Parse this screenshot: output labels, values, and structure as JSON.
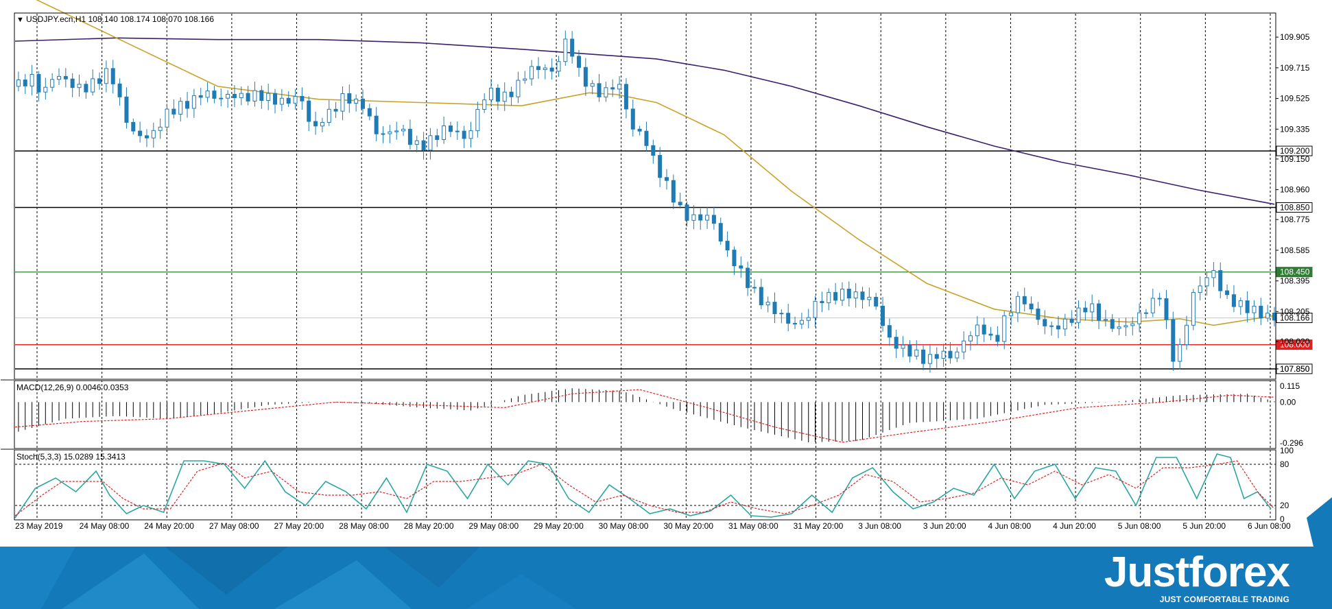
{
  "colors": {
    "bull_candle": "#ffffff",
    "bear_candle": "#1f7bb4",
    "candle_border": "#1f7bb4",
    "ma_fast": "#c9a227",
    "ma_slow": "#3a1f6b",
    "level_black": "#000000",
    "level_green": "#2e7d32",
    "level_red": "#e02020",
    "brand_blue": "#1479b8"
  },
  "chart_data": [
    {
      "type": "candlestick",
      "title": "USDJPY.ecn,H1  108.140 108.174 108.070 108.166",
      "symbol": "USDJPY.ecn,H1",
      "ohlc_header": [
        "108.140",
        "108.174",
        "108.070",
        "108.166"
      ],
      "ylim": [
        107.79,
        110.05
      ],
      "y_ticks": [
        "109.905",
        "109.715",
        "109.525",
        "109.335",
        "109.150",
        "108.960",
        "108.775",
        "108.585",
        "108.395",
        "108.205",
        "108.020",
        "107.850"
      ],
      "x_ticks": [
        "23 May 2019",
        "24 May 08:00",
        "24 May 20:00",
        "27 May 08:00",
        "27 May 20:00",
        "28 May 08:00",
        "28 May 20:00",
        "29 May 08:00",
        "29 May 20:00",
        "30 May 08:00",
        "30 May 20:00",
        "31 May 08:00",
        "31 May 20:00",
        "3 Jun 08:00",
        "3 Jun 20:00",
        "4 Jun 08:00",
        "4 Jun 20:00",
        "5 Jun 08:00",
        "5 Jun 20:00",
        "6 Jun 08:00"
      ],
      "levels": [
        {
          "label": "109.200",
          "value": 109.2,
          "style": "black"
        },
        {
          "label": "108.850",
          "value": 108.85,
          "style": "black"
        },
        {
          "label": "108.450",
          "value": 108.45,
          "style": "green"
        },
        {
          "label": "108.166",
          "value": 108.166,
          "style": "current"
        },
        {
          "label": "108.000",
          "value": 108.0,
          "style": "red"
        },
        {
          "label": "107.850",
          "value": 107.85,
          "style": "black"
        }
      ],
      "close_path": [
        [
          0,
          109.6
        ],
        [
          5,
          109.65
        ],
        [
          8,
          109.55
        ],
        [
          12,
          109.68
        ],
        [
          16,
          109.62
        ],
        [
          20,
          109.58
        ],
        [
          24,
          109.63
        ],
        [
          28,
          109.7
        ],
        [
          30,
          109.58
        ],
        [
          32,
          109.45
        ],
        [
          34,
          109.33
        ],
        [
          38,
          109.28
        ],
        [
          42,
          109.32
        ],
        [
          44,
          109.42
        ],
        [
          48,
          109.47
        ],
        [
          52,
          109.5
        ],
        [
          56,
          109.57
        ],
        [
          60,
          109.52
        ],
        [
          64,
          109.55
        ],
        [
          68,
          109.53
        ],
        [
          72,
          109.55
        ],
        [
          76,
          109.52
        ],
        [
          80,
          109.5
        ],
        [
          84,
          109.54
        ],
        [
          86,
          109.48
        ],
        [
          88,
          109.3
        ],
        [
          90,
          109.38
        ],
        [
          94,
          109.45
        ],
        [
          98,
          109.55
        ],
        [
          100,
          109.5
        ],
        [
          104,
          109.48
        ],
        [
          106,
          109.32
        ],
        [
          110,
          109.3
        ],
        [
          114,
          109.35
        ],
        [
          116,
          109.28
        ],
        [
          120,
          109.22
        ],
        [
          124,
          109.28
        ],
        [
          128,
          109.35
        ],
        [
          132,
          109.3
        ],
        [
          134,
          109.26
        ],
        [
          136,
          109.4
        ],
        [
          140,
          109.58
        ],
        [
          144,
          109.52
        ],
        [
          148,
          109.58
        ],
        [
          152,
          109.7
        ],
        [
          156,
          109.72
        ],
        [
          160,
          109.68
        ],
        [
          162,
          109.85
        ],
        [
          164,
          109.9
        ],
        [
          166,
          109.72
        ],
        [
          170,
          109.6
        ],
        [
          174,
          109.55
        ],
        [
          178,
          109.62
        ],
        [
          180,
          109.58
        ],
        [
          182,
          109.35
        ],
        [
          186,
          109.3
        ],
        [
          190,
          109.1
        ],
        [
          194,
          108.95
        ],
        [
          198,
          108.8
        ],
        [
          202,
          108.78
        ],
        [
          206,
          108.8
        ],
        [
          210,
          108.6
        ],
        [
          214,
          108.48
        ],
        [
          218,
          108.35
        ],
        [
          222,
          108.25
        ],
        [
          226,
          108.2
        ],
        [
          230,
          108.12
        ],
        [
          234,
          108.15
        ],
        [
          238,
          108.28
        ],
        [
          242,
          108.3
        ],
        [
          246,
          108.32
        ],
        [
          250,
          108.3
        ],
        [
          254,
          108.28
        ],
        [
          256,
          108.2
        ],
        [
          258,
          108.05
        ],
        [
          262,
          107.98
        ],
        [
          266,
          107.95
        ],
        [
          270,
          107.9
        ],
        [
          274,
          107.95
        ],
        [
          278,
          107.92
        ],
        [
          282,
          108.05
        ],
        [
          286,
          108.12
        ],
        [
          290,
          108.0
        ],
        [
          294,
          108.2
        ],
        [
          298,
          108.3
        ],
        [
          302,
          108.18
        ],
        [
          306,
          108.1
        ],
        [
          310,
          108.12
        ],
        [
          314,
          108.18
        ],
        [
          318,
          108.25
        ],
        [
          322,
          108.15
        ],
        [
          326,
          108.1
        ],
        [
          330,
          108.12
        ],
        [
          334,
          108.2
        ],
        [
          338,
          108.28
        ],
        [
          340,
          108.35
        ],
        [
          342,
          107.9
        ],
        [
          344,
          107.95
        ],
        [
          346,
          108.0
        ],
        [
          348,
          108.28
        ],
        [
          352,
          108.4
        ],
        [
          355,
          108.45
        ],
        [
          358,
          108.3
        ],
        [
          362,
          108.25
        ],
        [
          366,
          108.22
        ],
        [
          370,
          108.18
        ],
        [
          373,
          108.166
        ]
      ],
      "ma_fast": [
        [
          0,
          110.2
        ],
        [
          30,
          109.9
        ],
        [
          60,
          109.6
        ],
        [
          90,
          109.52
        ],
        [
          120,
          109.5
        ],
        [
          150,
          109.48
        ],
        [
          170,
          109.56
        ],
        [
          178,
          109.55
        ],
        [
          190,
          109.5
        ],
        [
          210,
          109.3
        ],
        [
          230,
          108.95
        ],
        [
          250,
          108.65
        ],
        [
          270,
          108.38
        ],
        [
          290,
          108.22
        ],
        [
          310,
          108.16
        ],
        [
          330,
          108.14
        ],
        [
          345,
          108.16
        ],
        [
          355,
          108.12
        ],
        [
          373,
          108.18
        ]
      ],
      "ma_slow": [
        [
          0,
          109.88
        ],
        [
          30,
          109.9
        ],
        [
          60,
          109.89
        ],
        [
          90,
          109.89
        ],
        [
          120,
          109.87
        ],
        [
          150,
          109.83
        ],
        [
          170,
          109.8
        ],
        [
          190,
          109.77
        ],
        [
          210,
          109.7
        ],
        [
          230,
          109.6
        ],
        [
          250,
          109.48
        ],
        [
          270,
          109.35
        ],
        [
          290,
          109.23
        ],
        [
          310,
          109.13
        ],
        [
          330,
          109.05
        ],
        [
          350,
          108.96
        ],
        [
          373,
          108.87
        ]
      ]
    },
    {
      "type": "histogram+line",
      "title": "MACD(12,26,9) 0.0046 0.0353",
      "indicator": "MACD(12,26,9)",
      "values_header": [
        "0.0046",
        "0.0353"
      ],
      "ylim": [
        -0.33,
        0.15
      ],
      "y_ticks": [
        "0.115",
        "0.00",
        "-0.296"
      ],
      "main_path": [
        [
          0,
          -0.22
        ],
        [
          15,
          -0.12
        ],
        [
          30,
          -0.1
        ],
        [
          45,
          -0.12
        ],
        [
          60,
          -0.08
        ],
        [
          75,
          -0.02
        ],
        [
          90,
          0.0
        ],
        [
          105,
          -0.01
        ],
        [
          120,
          -0.04
        ],
        [
          135,
          -0.06
        ],
        [
          150,
          0.05
        ],
        [
          165,
          0.1
        ],
        [
          180,
          0.08
        ],
        [
          195,
          -0.05
        ],
        [
          215,
          -0.18
        ],
        [
          235,
          -0.29
        ],
        [
          250,
          -0.28
        ],
        [
          265,
          -0.15
        ],
        [
          285,
          -0.12
        ],
        [
          305,
          -0.02
        ],
        [
          325,
          0.0
        ],
        [
          345,
          0.05
        ],
        [
          365,
          0.06
        ],
        [
          373,
          0.005
        ]
      ],
      "signal_path": [
        [
          0,
          -0.18
        ],
        [
          20,
          -0.14
        ],
        [
          45,
          -0.12
        ],
        [
          70,
          -0.06
        ],
        [
          95,
          0.0
        ],
        [
          120,
          -0.02
        ],
        [
          145,
          -0.04
        ],
        [
          165,
          0.06
        ],
        [
          185,
          0.09
        ],
        [
          205,
          -0.04
        ],
        [
          225,
          -0.18
        ],
        [
          245,
          -0.29
        ],
        [
          265,
          -0.22
        ],
        [
          290,
          -0.14
        ],
        [
          315,
          -0.04
        ],
        [
          340,
          0.0
        ],
        [
          360,
          0.05
        ],
        [
          373,
          0.035
        ]
      ]
    },
    {
      "type": "line",
      "title": "Stoch(5,3,3) 15.0289 15.3413",
      "indicator": "Stoch(5,3,3)",
      "values_header": [
        "15.0289",
        "15.3413"
      ],
      "ylim": [
        0,
        100
      ],
      "y_ticks": [
        "100",
        "80",
        "20",
        "0"
      ],
      "reference_levels": [
        80,
        20
      ],
      "main_path": [
        [
          0,
          2
        ],
        [
          6,
          45
        ],
        [
          12,
          60
        ],
        [
          18,
          40
        ],
        [
          24,
          70
        ],
        [
          28,
          35
        ],
        [
          33,
          8
        ],
        [
          38,
          20
        ],
        [
          44,
          10
        ],
        [
          50,
          85
        ],
        [
          56,
          85
        ],
        [
          62,
          80
        ],
        [
          68,
          45
        ],
        [
          74,
          85
        ],
        [
          80,
          40
        ],
        [
          86,
          20
        ],
        [
          92,
          55
        ],
        [
          98,
          40
        ],
        [
          104,
          15
        ],
        [
          110,
          60
        ],
        [
          116,
          10
        ],
        [
          122,
          80
        ],
        [
          128,
          70
        ],
        [
          134,
          30
        ],
        [
          140,
          80
        ],
        [
          146,
          50
        ],
        [
          152,
          85
        ],
        [
          158,
          80
        ],
        [
          164,
          30
        ],
        [
          170,
          10
        ],
        [
          176,
          50
        ],
        [
          182,
          30
        ],
        [
          188,
          8
        ],
        [
          194,
          15
        ],
        [
          200,
          5
        ],
        [
          206,
          12
        ],
        [
          212,
          35
        ],
        [
          218,
          5
        ],
        [
          224,
          3
        ],
        [
          230,
          8
        ],
        [
          236,
          35
        ],
        [
          242,
          10
        ],
        [
          248,
          60
        ],
        [
          254,
          75
        ],
        [
          260,
          40
        ],
        [
          266,
          15
        ],
        [
          272,
          25
        ],
        [
          278,
          45
        ],
        [
          284,
          35
        ],
        [
          290,
          80
        ],
        [
          296,
          30
        ],
        [
          302,
          70
        ],
        [
          308,
          80
        ],
        [
          314,
          30
        ],
        [
          320,
          75
        ],
        [
          326,
          70
        ],
        [
          332,
          20
        ],
        [
          338,
          90
        ],
        [
          344,
          90
        ],
        [
          350,
          30
        ],
        [
          356,
          95
        ],
        [
          360,
          90
        ],
        [
          364,
          30
        ],
        [
          368,
          40
        ],
        [
          372,
          15
        ]
      ],
      "signal_path": [
        [
          0,
          5
        ],
        [
          8,
          35
        ],
        [
          14,
          55
        ],
        [
          20,
          55
        ],
        [
          26,
          55
        ],
        [
          32,
          30
        ],
        [
          38,
          15
        ],
        [
          46,
          15
        ],
        [
          54,
          70
        ],
        [
          62,
          82
        ],
        [
          68,
          60
        ],
        [
          76,
          70
        ],
        [
          84,
          40
        ],
        [
          92,
          35
        ],
        [
          100,
          35
        ],
        [
          108,
          40
        ],
        [
          116,
          30
        ],
        [
          124,
          55
        ],
        [
          132,
          55
        ],
        [
          140,
          60
        ],
        [
          148,
          65
        ],
        [
          156,
          80
        ],
        [
          164,
          50
        ],
        [
          172,
          25
        ],
        [
          180,
          35
        ],
        [
          188,
          20
        ],
        [
          196,
          10
        ],
        [
          204,
          10
        ],
        [
          212,
          25
        ],
        [
          220,
          15
        ],
        [
          228,
          8
        ],
        [
          236,
          20
        ],
        [
          244,
          35
        ],
        [
          252,
          65
        ],
        [
          260,
          55
        ],
        [
          268,
          25
        ],
        [
          276,
          30
        ],
        [
          284,
          38
        ],
        [
          292,
          60
        ],
        [
          300,
          50
        ],
        [
          308,
          70
        ],
        [
          316,
          50
        ],
        [
          324,
          65
        ],
        [
          332,
          45
        ],
        [
          340,
          75
        ],
        [
          348,
          75
        ],
        [
          356,
          80
        ],
        [
          362,
          85
        ],
        [
          368,
          40
        ],
        [
          373,
          15
        ]
      ]
    }
  ],
  "brand": {
    "name": "Justforex",
    "tagline": "JUST COMFORTABLE TRADING"
  }
}
